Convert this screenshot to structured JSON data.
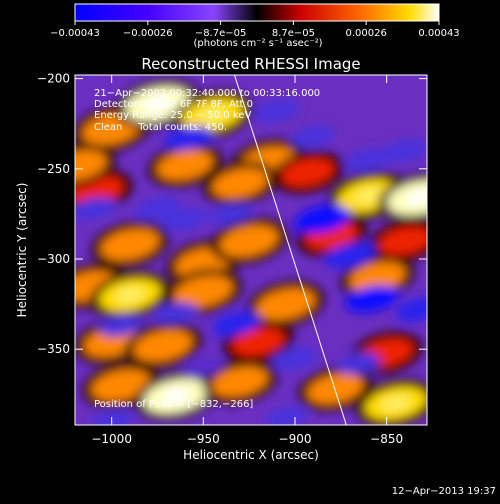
{
  "colorbar": {
    "ticks": [
      "−0.00043",
      "−0.00026",
      "−8.7e−05",
      "8.7e−05",
      "0.00026",
      "0.00043"
    ],
    "unit_label": "(photons cm⁻² s⁻¹ asec⁻²)",
    "colors": [
      "#0000ff",
      "#5500ff",
      "#8a45ff",
      "#1a0000",
      "#ff0000",
      "#ff8800",
      "#ffff00",
      "#ffffff"
    ]
  },
  "chart_data": {
    "type": "heatmap",
    "title": "Reconstructed RHESSI Image",
    "xlabel": "Heliocentric X (arcsec)",
    "ylabel": "Heliocentric Y (arcsec)",
    "xlim": [
      -1020,
      -828
    ],
    "ylim": [
      -392,
      -198
    ],
    "x_ticks": [
      -1000,
      -950,
      -900,
      -850
    ],
    "y_ticks": [
      -350,
      -300,
      -250,
      -200
    ],
    "colorbar_range": [
      -0.00043,
      0.00043
    ],
    "info_lines": [
      "21−Apr−2002 00:32:40.000 to 00:33:16.000",
      "Detectors: 4F 5F 6F 7F 8F, Att 0",
      "Energy Range: 25.0 − 50.0 keV",
      "Clean     Total counts: 450."
    ],
    "peak_label": "Position of Peak = [−832,−266]",
    "peak_position": [
      -832,
      -266
    ],
    "limb_line": [
      [
        -933,
        -198
      ],
      [
        -872,
        -392
      ]
    ],
    "blobs": [
      {
        "x": -1000,
        "y": -228,
        "v": 0.8
      },
      {
        "x": -975,
        "y": -214,
        "v": 1.0
      },
      {
        "x": -945,
        "y": -220,
        "v": 0.9
      },
      {
        "x": -915,
        "y": -246,
        "v": 0.7
      },
      {
        "x": -893,
        "y": -252,
        "v": 0.6
      },
      {
        "x": -1008,
        "y": -262,
        "v": 0.6
      },
      {
        "x": -1018,
        "y": -248,
        "v": 0.7
      },
      {
        "x": -960,
        "y": -248,
        "v": 0.7
      },
      {
        "x": -930,
        "y": -258,
        "v": 0.7
      },
      {
        "x": -860,
        "y": -265,
        "v": 0.9
      },
      {
        "x": -832,
        "y": -266,
        "v": 1.0
      },
      {
        "x": -990,
        "y": -292,
        "v": 0.8
      },
      {
        "x": -950,
        "y": -302,
        "v": 0.7
      },
      {
        "x": -925,
        "y": -290,
        "v": 0.8
      },
      {
        "x": -880,
        "y": -287,
        "v": 0.6
      },
      {
        "x": -840,
        "y": -290,
        "v": 0.6
      },
      {
        "x": -1012,
        "y": -315,
        "v": 0.7
      },
      {
        "x": -990,
        "y": -320,
        "v": 0.9
      },
      {
        "x": -950,
        "y": -318,
        "v": 0.8
      },
      {
        "x": -905,
        "y": -325,
        "v": 0.8
      },
      {
        "x": -855,
        "y": -310,
        "v": 0.7
      },
      {
        "x": -1000,
        "y": -346,
        "v": 0.7
      },
      {
        "x": -972,
        "y": -348,
        "v": 0.8
      },
      {
        "x": -920,
        "y": -346,
        "v": 0.6
      },
      {
        "x": -850,
        "y": -352,
        "v": 0.6
      },
      {
        "x": -995,
        "y": -370,
        "v": 0.8
      },
      {
        "x": -965,
        "y": -376,
        "v": 1.0
      },
      {
        "x": -930,
        "y": -368,
        "v": 0.7
      },
      {
        "x": -878,
        "y": -372,
        "v": 0.7
      },
      {
        "x": -845,
        "y": -380,
        "v": 0.9
      },
      {
        "x": -1010,
        "y": -272,
        "v": -0.6
      },
      {
        "x": -975,
        "y": -272,
        "v": -0.6
      },
      {
        "x": -958,
        "y": -233,
        "v": -0.7
      },
      {
        "x": -910,
        "y": -218,
        "v": -0.6
      },
      {
        "x": -890,
        "y": -232,
        "v": -0.5
      },
      {
        "x": -885,
        "y": -278,
        "v": -1.0
      },
      {
        "x": -860,
        "y": -245,
        "v": -0.6
      },
      {
        "x": -840,
        "y": -240,
        "v": -0.6
      },
      {
        "x": -960,
        "y": -278,
        "v": -0.6
      },
      {
        "x": -935,
        "y": -275,
        "v": -0.5
      },
      {
        "x": -965,
        "y": -330,
        "v": -0.5
      },
      {
        "x": -932,
        "y": -336,
        "v": -0.7
      },
      {
        "x": -870,
        "y": -298,
        "v": -0.8
      },
      {
        "x": -858,
        "y": -322,
        "v": -0.9
      },
      {
        "x": -832,
        "y": -328,
        "v": -0.7
      },
      {
        "x": -995,
        "y": -337,
        "v": -0.5
      },
      {
        "x": -900,
        "y": -355,
        "v": -0.6
      },
      {
        "x": -865,
        "y": -358,
        "v": -0.5
      },
      {
        "x": -1000,
        "y": -390,
        "v": -0.5
      },
      {
        "x": -905,
        "y": -388,
        "v": -0.5
      },
      {
        "x": -950,
        "y": -360,
        "v": -0.4
      }
    ]
  },
  "timestamp": "12−Apr−2013 19:37"
}
